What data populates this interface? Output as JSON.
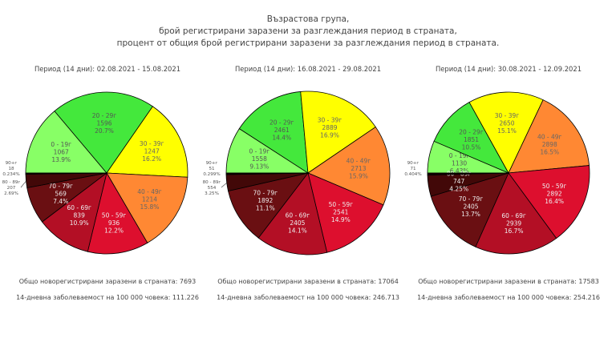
{
  "title_lines": [
    "Възрастова група,",
    "брой регистрирани заразени за разглеждания период в страната,",
    "процент от общия брой регистрирани заразени за разглеждания период в страната."
  ],
  "colors": [
    "#88ff66",
    "#44e83c",
    "#ffff00",
    "#ff8833",
    "#dd0f2e",
    "#b30f25",
    "#6a0f12",
    "#420808",
    "#140000"
  ],
  "chart_data": [
    {
      "type": "pie",
      "title": "Период (14 дни): 02.08.2021 - 15.08.2021",
      "categories": [
        "0 - 19г",
        "20 - 29г",
        "30 - 39г",
        "40 - 49г",
        "50 - 59г",
        "60 - 69г",
        "70 - 79г",
        "80 - 89г",
        "90+г"
      ],
      "values": [
        1067,
        1596,
        1247,
        1214,
        936,
        839,
        569,
        207,
        18
      ],
      "percents": [
        "13.9%",
        "20.7%",
        "16.2%",
        "15.8%",
        "12.2%",
        "10.9%",
        "7.4%",
        "2.69%",
        "0.234%"
      ],
      "total_label": "Общо новорегистрирани заразени в страната: 7693",
      "incidence_label": "14-дневна заболеваемост на 100 000 човека: 111.226"
    },
    {
      "type": "pie",
      "title": "Период (14 дни): 16.08.2021 - 29.08.2021",
      "categories": [
        "0 - 19г",
        "20 - 29г",
        "30 - 39г",
        "40 - 49г",
        "50 - 59г",
        "60 - 69г",
        "70 - 79г",
        "80 - 89г",
        "90+г"
      ],
      "values": [
        1558,
        2461,
        2889,
        2713,
        2541,
        2405,
        1892,
        554,
        51
      ],
      "percents": [
        "9.13%",
        "14.4%",
        "16.9%",
        "15.9%",
        "14.9%",
        "14.1%",
        "11.1%",
        "3.25%",
        "0.299%"
      ],
      "total_label": "Общо новорегистрирани заразени в страната: 17064",
      "incidence_label": "14-дневна заболеваемост на 100 000 човека: 246.713"
    },
    {
      "type": "pie",
      "title": "Период (14 дни): 30.08.2021 - 12.09.2021",
      "categories": [
        "0 - 19г",
        "20 - 29г",
        "30 - 39г",
        "40 - 49г",
        "50 - 59г",
        "60 - 69г",
        "70 - 79г",
        "80 - 89г",
        "90+г"
      ],
      "values": [
        1130,
        1851,
        2650,
        2898,
        2892,
        2939,
        2405,
        747,
        71
      ],
      "percents": [
        "6.43%",
        "10.5%",
        "15.1%",
        "16.5%",
        "16.4%",
        "16.7%",
        "13.7%",
        "4.25%",
        "0.404%"
      ],
      "total_label": "Общо новорегистрирани заразени в страната: 17583",
      "incidence_label": "14-дневна заболеваемост на 100 000 човека: 254.216"
    }
  ]
}
